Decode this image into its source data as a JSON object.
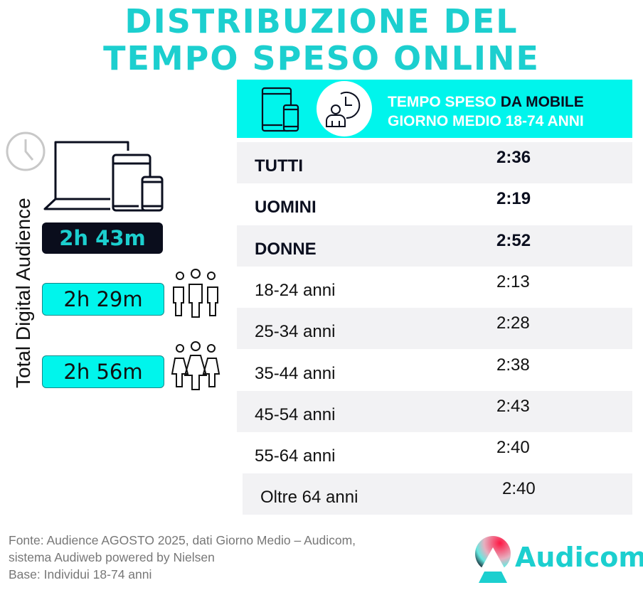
{
  "title": {
    "line1": "DISTRIBUZIONE DEL",
    "line2": "TEMPO SPESO ONLINE"
  },
  "header": {
    "part1": "TEMPO SPESO ",
    "part2": "DA MOBILE",
    "line2": "GIORNO MEDIO 18-74 ANNI"
  },
  "left": {
    "vertical_label": "Total Digital Audience",
    "total": "2h 43m",
    "men": "2h 29m",
    "women": "2h 56m"
  },
  "rows": [
    {
      "label": "TUTTI",
      "value": "2:36"
    },
    {
      "label": "UOMINI",
      "value": "2:19"
    },
    {
      "label": "DONNE",
      "value": "2:52"
    },
    {
      "label": "18-24 anni",
      "value": "2:13"
    },
    {
      "label": "25-34 anni",
      "value": "2:28"
    },
    {
      "label": "35-44 anni",
      "value": "2:38"
    },
    {
      "label": "45-54 anni",
      "value": "2:43"
    },
    {
      "label": "55-64 anni",
      "value": "2:40"
    },
    {
      "label": "Oltre 64 anni",
      "value": "2:40"
    }
  ],
  "footer": {
    "line1": "Fonte: Audience AGOSTO 2025, dati Giorno Medio – Audicom,",
    "line2": "sistema Audiweb powered by Nielsen",
    "line3": "Base: Individui 18-74 anni"
  },
  "logo": {
    "text": "Audicom"
  },
  "colors": {
    "accent": "#00f5ec",
    "title": "#1ccfcf",
    "dark": "#0a0d1c"
  }
}
